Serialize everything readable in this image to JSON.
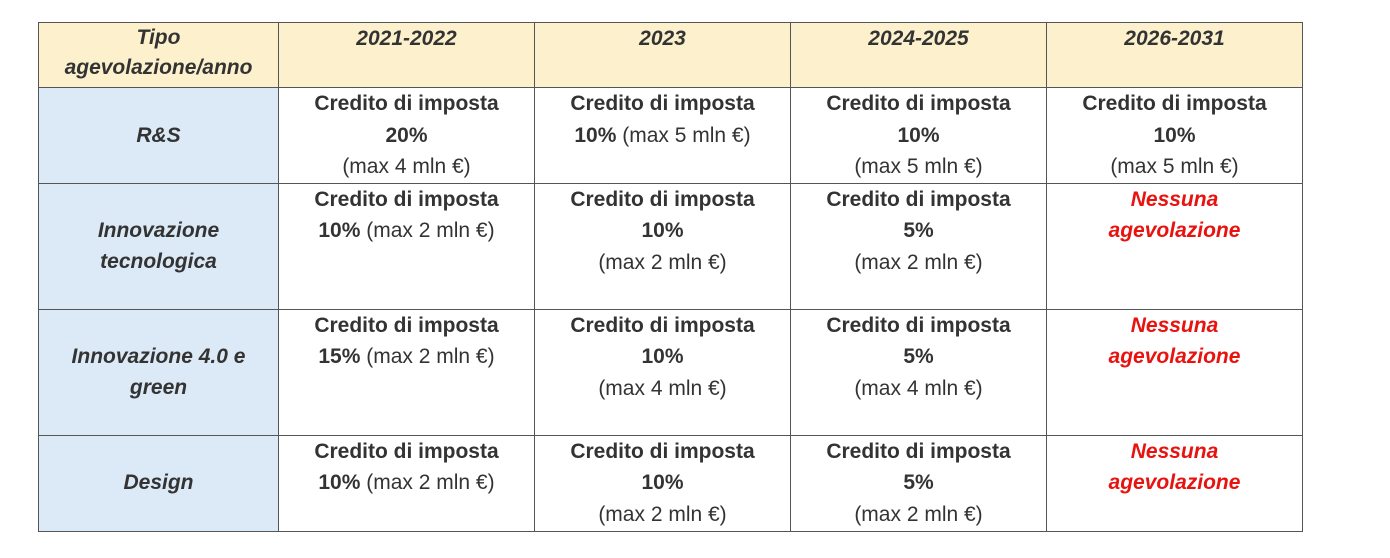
{
  "header": {
    "first": [
      "Tipo",
      "agevolazione/anno"
    ],
    "years": [
      "2021-2022",
      "2023",
      "2024-2025",
      "2026-2031"
    ]
  },
  "rows": [
    {
      "name": [
        "R&S"
      ],
      "cells": [
        {
          "type": "credit",
          "label": "Credito di imposta",
          "pct": "20%",
          "max": "(max 4 mln €)",
          "inline": false
        },
        {
          "type": "credit",
          "label": "Credito di imposta",
          "pct": "10%",
          "max": "(max 5 mln €)",
          "inline": true
        },
        {
          "type": "credit",
          "label": "Credito di imposta",
          "pct": "10%",
          "max": "(max 5 mln €)",
          "inline": false
        },
        {
          "type": "credit",
          "label": "Credito di imposta",
          "pct": "10%",
          "max": "(max 5 mln €)",
          "inline": false
        }
      ]
    },
    {
      "name": [
        "Innovazione",
        "tecnologica"
      ],
      "cells": [
        {
          "type": "credit",
          "label": "Credito di imposta",
          "pct": "10%",
          "max": "(max 2 mln €)",
          "inline": true
        },
        {
          "type": "credit",
          "label": "Credito di imposta",
          "pct": "10%",
          "max": "(max 2 mln €)",
          "inline": false
        },
        {
          "type": "credit",
          "label": "Credito di imposta",
          "pct": "5%",
          "max": "(max 2 mln €)",
          "inline": false
        },
        {
          "type": "none",
          "text": [
            "Nessuna",
            "agevolazione"
          ]
        }
      ]
    },
    {
      "name": [
        "Innovazione 4.0 e",
        "green"
      ],
      "cells": [
        {
          "type": "credit",
          "label": "Credito di imposta",
          "pct": "15%",
          "max": "(max 2 mln €)",
          "inline": true
        },
        {
          "type": "credit",
          "label": "Credito di imposta",
          "pct": "10%",
          "max": "(max 4 mln €)",
          "inline": false
        },
        {
          "type": "credit",
          "label": "Credito di imposta",
          "pct": "5%",
          "max": "(max 4 mln €)",
          "inline": false
        },
        {
          "type": "none",
          "text": [
            "Nessuna",
            "agevolazione"
          ]
        }
      ]
    },
    {
      "name": [
        "Design"
      ],
      "cells": [
        {
          "type": "credit",
          "label": "Credito di imposta",
          "pct": "10%",
          "max": "(max 2 mln €)",
          "inline": true
        },
        {
          "type": "credit",
          "label": "Credito di imposta",
          "pct": "10%",
          "max": "(max 2 mln €)",
          "inline": false
        },
        {
          "type": "credit",
          "label": "Credito di imposta",
          "pct": "5%",
          "max": "(max 2 mln €)",
          "inline": false
        },
        {
          "type": "none",
          "text": [
            "Nessuna",
            "agevolazione"
          ]
        }
      ]
    }
  ]
}
